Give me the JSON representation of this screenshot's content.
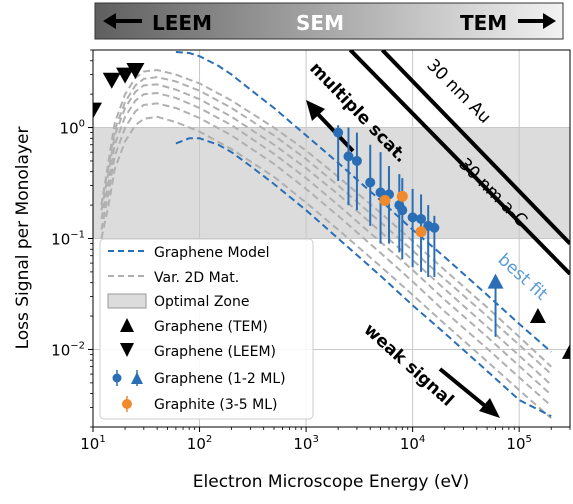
{
  "chart_data": {
    "type": "line",
    "xlabel": "Electron Microscope Energy (eV)",
    "ylabel": "Loss Signal per Monolayer",
    "xscale": "log",
    "yscale": "log",
    "xlim": [
      10,
      300000
    ],
    "ylim": [
      0.002,
      5
    ],
    "xticks": [
      {
        "value": 10,
        "base": "10",
        "exp": "1"
      },
      {
        "value": 100,
        "base": "10",
        "exp": "2"
      },
      {
        "value": 1000,
        "base": "10",
        "exp": "3"
      },
      {
        "value": 10000,
        "base": "10",
        "exp": "4"
      },
      {
        "value": 100000,
        "base": "10",
        "exp": "5"
      }
    ],
    "yticks": [
      {
        "value": 0.01,
        "base": "10",
        "exp": "−2"
      },
      {
        "value": 0.1,
        "base": "10",
        "exp": "−1"
      },
      {
        "value": 1,
        "base": "10",
        "exp": "0"
      }
    ],
    "grid": true,
    "legend_position": "lower-left",
    "optimal_zone": {
      "ymin": 0.1,
      "ymax": 1
    },
    "banner": {
      "left": "LEEM",
      "center": "SEM",
      "right": "TEM"
    },
    "graphene_model": [
      {
        "x": [
          60,
          80,
          100,
          150,
          200,
          300,
          500,
          1000,
          2000,
          5000,
          10000,
          20000,
          50000,
          100000,
          200000
        ],
        "y": [
          4.8,
          4.7,
          4.4,
          3.6,
          3.0,
          2.2,
          1.5,
          0.85,
          0.48,
          0.22,
          0.12,
          0.068,
          0.031,
          0.017,
          0.0095
        ]
      },
      {
        "x": [
          60,
          80,
          100,
          150,
          200,
          300,
          500,
          1000,
          2000,
          5000,
          10000,
          20000,
          50000,
          100000,
          200000
        ],
        "y": [
          0.72,
          0.8,
          0.8,
          0.7,
          0.6,
          0.45,
          0.31,
          0.18,
          0.1,
          0.046,
          0.025,
          0.014,
          0.0064,
          0.0035,
          0.0025
        ]
      }
    ],
    "var_2d_materials": [
      {
        "x": [
          12,
          14,
          16,
          20,
          25,
          30,
          40,
          60,
          100,
          200,
          500,
          1000,
          2000,
          5000,
          10000,
          20000,
          50000,
          100000,
          200000
        ],
        "y": [
          0.2,
          0.5,
          1.1,
          2.0,
          2.8,
          3.2,
          3.3,
          3.0,
          2.5,
          1.75,
          1.0,
          0.62,
          0.36,
          0.17,
          0.095,
          0.052,
          0.024,
          0.013,
          0.007
        ]
      },
      {
        "x": [
          12,
          14,
          16,
          20,
          25,
          30,
          40,
          60,
          100,
          200,
          500,
          1000,
          2000,
          5000,
          10000,
          20000,
          50000,
          100000,
          200000
        ],
        "y": [
          0.2,
          0.45,
          0.95,
          1.7,
          2.4,
          2.75,
          2.85,
          2.6,
          2.15,
          1.5,
          0.85,
          0.52,
          0.3,
          0.14,
          0.078,
          0.043,
          0.02,
          0.011,
          0.006
        ]
      },
      {
        "x": [
          12,
          14,
          16,
          20,
          25,
          30,
          40,
          60,
          100,
          200,
          500,
          1000,
          2000,
          5000,
          10000,
          20000,
          50000,
          100000,
          200000
        ],
        "y": [
          0.18,
          0.4,
          0.85,
          1.5,
          2.1,
          2.4,
          2.45,
          2.2,
          1.8,
          1.25,
          0.7,
          0.43,
          0.25,
          0.115,
          0.064,
          0.035,
          0.016,
          0.0088,
          0.0048
        ]
      },
      {
        "x": [
          12,
          14,
          16,
          20,
          25,
          30,
          40,
          60,
          100,
          200,
          500,
          1000,
          2000,
          5000,
          10000,
          20000,
          50000,
          100000,
          200000
        ],
        "y": [
          0.15,
          0.32,
          0.7,
          1.25,
          1.75,
          2.0,
          2.05,
          1.85,
          1.5,
          1.05,
          0.58,
          0.35,
          0.2,
          0.093,
          0.052,
          0.028,
          0.013,
          0.0071,
          0.0039
        ]
      },
      {
        "x": [
          12,
          14,
          16,
          20,
          25,
          30,
          40,
          60,
          100,
          200,
          500,
          1000,
          2000,
          5000,
          10000,
          20000,
          50000,
          100000,
          200000
        ],
        "y": [
          0.12,
          0.26,
          0.55,
          1.0,
          1.4,
          1.6,
          1.65,
          1.5,
          1.22,
          0.85,
          0.47,
          0.28,
          0.16,
          0.074,
          0.041,
          0.022,
          0.0102,
          0.0056,
          0.0031
        ]
      },
      {
        "x": [
          12,
          14,
          16,
          20,
          25,
          30,
          40,
          60,
          100,
          200,
          500,
          1000,
          2000,
          5000,
          10000,
          20000,
          50000,
          100000,
          200000
        ],
        "y": [
          0.1,
          0.2,
          0.42,
          0.75,
          1.05,
          1.2,
          1.25,
          1.12,
          0.92,
          0.64,
          0.36,
          0.21,
          0.12,
          0.056,
          0.031,
          0.017,
          0.0078,
          0.0043,
          0.0024
        ]
      }
    ],
    "reference_lines": [
      {
        "label": "30 nm Au",
        "x": [
          2600,
          300000
        ],
        "y": [
          5.0,
          0.048
        ]
      },
      {
        "label": "30 nm a-C",
        "x": [
          5200,
          300000
        ],
        "y": [
          5.0,
          0.09
        ]
      }
    ],
    "graphene_tem": {
      "x": [
        150000,
        300000
      ],
      "y": [
        0.02,
        0.0095
      ]
    },
    "graphene_leem": {
      "x": [
        10,
        15,
        20,
        25
      ],
      "y": [
        1.45,
        2.7,
        3.0,
        3.3
      ]
    },
    "graphene_1_2ml": {
      "x": [
        2000,
        2500,
        3000,
        4000,
        5000,
        6000,
        7500,
        8000,
        10000,
        12000,
        14000,
        16000
      ],
      "y": [
        0.9,
        0.55,
        0.5,
        0.32,
        0.26,
        0.25,
        0.2,
        0.18,
        0.155,
        0.15,
        0.13,
        0.125
      ],
      "y_low": [
        0.33,
        0.2,
        0.18,
        0.13,
        0.09,
        0.09,
        0.075,
        0.065,
        0.055,
        0.05,
        0.045,
        0.045
      ],
      "y_high": [
        1.05,
        1.0,
        0.9,
        0.7,
        0.6,
        0.45,
        0.38,
        0.35,
        0.28,
        0.25,
        0.2,
        0.16
      ]
    },
    "graphene_1_2ml_triangle": {
      "x": 60000,
      "y": 0.04,
      "y_low": 0.013,
      "y_high": 0.045
    },
    "graphite_3_5ml": {
      "x": [
        5500,
        8000,
        12000
      ],
      "y": [
        0.22,
        0.24,
        0.115
      ]
    },
    "annotations": {
      "multiple_scat": "multiple scat.",
      "weak_signal": "weak signal",
      "best_fit": "best fit"
    },
    "legend": {
      "model": "Graphene Model",
      "var": "Var. 2D Mat.",
      "zone": "Optimal Zone",
      "tem": "Graphene (TEM)",
      "leem": "Graphene (LEEM)",
      "gr12": "Graphene (1-2 ML)",
      "graphite": "Graphite (3-5 ML)"
    },
    "colors": {
      "blue": "#2a6fb6",
      "orange": "#f08a2c",
      "gray": "#b0b0b0",
      "zone": "#dcdcdc",
      "banner_left": "#6d6d6d",
      "banner_right": "#f0f0f0"
    }
  }
}
